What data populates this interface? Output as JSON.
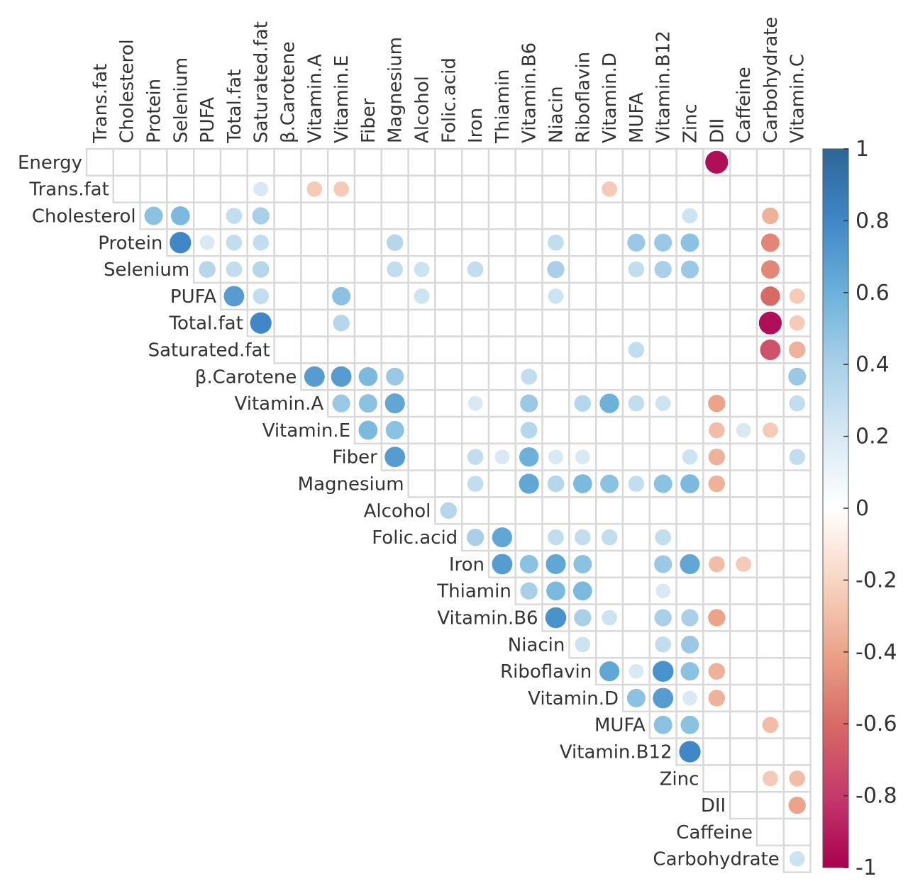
{
  "chart_data": {
    "type": "heatmap",
    "subtype": "upper-triangle correlation plot (circles)",
    "variables": [
      "Energy",
      "Trans.fat",
      "Cholesterol",
      "Protein",
      "Selenium",
      "PUFA",
      "Total.fat",
      "Saturated.fat",
      "β.Carotene",
      "Vitamin.A",
      "Vitamin.E",
      "Fiber",
      "Magnesium",
      "Alcohol",
      "Folic.acid",
      "Iron",
      "Thiamin",
      "Vitamin.B6",
      "Niacin",
      "Riboflavin",
      "Vitamin.D",
      "MUFA",
      "Vitamin.B12",
      "Zinc",
      "DII",
      "Caffeine",
      "Carbohydrate",
      "Vitamin.C"
    ],
    "row_labels": [
      "Energy",
      "Trans.fat",
      "Cholesterol",
      "Protein",
      "Selenium",
      "PUFA",
      "Total.fat",
      "Saturated.fat",
      "β.Carotene",
      "Vitamin.A",
      "Vitamin.E",
      "Fiber",
      "Magnesium",
      "Alcohol",
      "Folic.acid",
      "Iron",
      "Thiamin",
      "Vitamin.B6",
      "Niacin",
      "Riboflavin",
      "Vitamin.D",
      "MUFA",
      "Vitamin.B12",
      "Zinc",
      "DII",
      "Caffeine",
      "Carbohydrate"
    ],
    "column_labels": [
      "Trans.fat",
      "Cholesterol",
      "Protein",
      "Selenium",
      "PUFA",
      "Total.fat",
      "Saturated.fat",
      "β.Carotene",
      "Vitamin.A",
      "Vitamin.E",
      "Fiber",
      "Magnesium",
      "Alcohol",
      "Folic.acid",
      "Iron",
      "Thiamin",
      "Vitamin.B6",
      "Niacin",
      "Riboflavin",
      "Vitamin.D",
      "MUFA",
      "Vitamin.B12",
      "Zinc",
      "DII",
      "Caffeine",
      "Carbohydrate",
      "Vitamin.C"
    ],
    "value_range": [
      -1,
      1
    ],
    "colorbar": {
      "ticks": [
        "1",
        "0.8",
        "0.6",
        "0.4",
        "0.2",
        "0",
        "-0.2",
        "-0.4",
        "-0.6",
        "-0.8",
        "-1"
      ],
      "colors": {
        "-1": "#a8004f",
        "-0.8": "#c43a6b",
        "-0.6": "#d86a66",
        "-0.4": "#eba48a",
        "-0.2": "#f8d6c4",
        "0": "#ffffff",
        "0.2": "#d8e9f4",
        "0.4": "#a9d0e8",
        "0.6": "#6cb1da",
        "0.8": "#3f87c6",
        "1": "#2d6697"
      }
    },
    "correlations": [
      {
        "row": "Energy",
        "col": "DII",
        "r": -0.95
      },
      {
        "row": "Trans.fat",
        "col": "Saturated.fat",
        "r": 0.2
      },
      {
        "row": "Trans.fat",
        "col": "Vitamin.A",
        "r": -0.25
      },
      {
        "row": "Trans.fat",
        "col": "Vitamin.E",
        "r": -0.25
      },
      {
        "row": "Trans.fat",
        "col": "Vitamin.D",
        "r": -0.25
      },
      {
        "row": "Cholesterol",
        "col": "Protein",
        "r": 0.5
      },
      {
        "row": "Cholesterol",
        "col": "Selenium",
        "r": 0.55
      },
      {
        "row": "Cholesterol",
        "col": "Total.fat",
        "r": 0.3
      },
      {
        "row": "Cholesterol",
        "col": "Saturated.fat",
        "r": 0.4
      },
      {
        "row": "Cholesterol",
        "col": "Zinc",
        "r": 0.25
      },
      {
        "row": "Cholesterol",
        "col": "Carbohydrate",
        "r": -0.35
      },
      {
        "row": "Protein",
        "col": "Selenium",
        "r": 0.8
      },
      {
        "row": "Protein",
        "col": "PUFA",
        "r": 0.2
      },
      {
        "row": "Protein",
        "col": "Total.fat",
        "r": 0.3
      },
      {
        "row": "Protein",
        "col": "Saturated.fat",
        "r": 0.3
      },
      {
        "row": "Protein",
        "col": "Magnesium",
        "r": 0.35
      },
      {
        "row": "Protein",
        "col": "Niacin",
        "r": 0.3
      },
      {
        "row": "Protein",
        "col": "MUFA",
        "r": 0.45
      },
      {
        "row": "Protein",
        "col": "Vitamin.B12",
        "r": 0.45
      },
      {
        "row": "Protein",
        "col": "Zinc",
        "r": 0.5
      },
      {
        "row": "Protein",
        "col": "Carbohydrate",
        "r": -0.5
      },
      {
        "row": "Selenium",
        "col": "PUFA",
        "r": 0.35
      },
      {
        "row": "Selenium",
        "col": "Total.fat",
        "r": 0.3
      },
      {
        "row": "Selenium",
        "col": "Saturated.fat",
        "r": 0.35
      },
      {
        "row": "Selenium",
        "col": "Magnesium",
        "r": 0.3
      },
      {
        "row": "Selenium",
        "col": "Alcohol",
        "r": 0.25
      },
      {
        "row": "Selenium",
        "col": "Iron",
        "r": 0.3
      },
      {
        "row": "Selenium",
        "col": "Niacin",
        "r": 0.4
      },
      {
        "row": "Selenium",
        "col": "MUFA",
        "r": 0.3
      },
      {
        "row": "Selenium",
        "col": "Vitamin.B12",
        "r": 0.4
      },
      {
        "row": "Selenium",
        "col": "Zinc",
        "r": 0.45
      },
      {
        "row": "Selenium",
        "col": "Carbohydrate",
        "r": -0.5
      },
      {
        "row": "PUFA",
        "col": "Total.fat",
        "r": 0.7
      },
      {
        "row": "PUFA",
        "col": "Saturated.fat",
        "r": 0.3
      },
      {
        "row": "PUFA",
        "col": "Vitamin.E",
        "r": 0.5
      },
      {
        "row": "PUFA",
        "col": "Alcohol",
        "r": 0.25
      },
      {
        "row": "PUFA",
        "col": "Niacin",
        "r": 0.25
      },
      {
        "row": "PUFA",
        "col": "Carbohydrate",
        "r": -0.6
      },
      {
        "row": "PUFA",
        "col": "Vitamin.C",
        "r": -0.25
      },
      {
        "row": "Total.fat",
        "col": "Saturated.fat",
        "r": 0.8
      },
      {
        "row": "Total.fat",
        "col": "Vitamin.E",
        "r": 0.35
      },
      {
        "row": "Total.fat",
        "col": "Carbohydrate",
        "r": -0.95
      },
      {
        "row": "Total.fat",
        "col": "Vitamin.C",
        "r": -0.25
      },
      {
        "row": "Saturated.fat",
        "col": "MUFA",
        "r": 0.3
      },
      {
        "row": "Saturated.fat",
        "col": "Carbohydrate",
        "r": -0.7
      },
      {
        "row": "Saturated.fat",
        "col": "Vitamin.C",
        "r": -0.35
      },
      {
        "row": "β.Carotene",
        "col": "Vitamin.A",
        "r": 0.7
      },
      {
        "row": "β.Carotene",
        "col": "Vitamin.E",
        "r": 0.7
      },
      {
        "row": "β.Carotene",
        "col": "Fiber",
        "r": 0.55
      },
      {
        "row": "β.Carotene",
        "col": "Magnesium",
        "r": 0.45
      },
      {
        "row": "β.Carotene",
        "col": "Vitamin.B6",
        "r": 0.3
      },
      {
        "row": "β.Carotene",
        "col": "Vitamin.C",
        "r": 0.45
      },
      {
        "row": "Vitamin.A",
        "col": "Vitamin.E",
        "r": 0.45
      },
      {
        "row": "Vitamin.A",
        "col": "Fiber",
        "r": 0.5
      },
      {
        "row": "Vitamin.A",
        "col": "Magnesium",
        "r": 0.65
      },
      {
        "row": "Vitamin.A",
        "col": "Iron",
        "r": 0.2
      },
      {
        "row": "Vitamin.A",
        "col": "Vitamin.B6",
        "r": 0.45
      },
      {
        "row": "Vitamin.A",
        "col": "Riboflavin",
        "r": 0.35
      },
      {
        "row": "Vitamin.A",
        "col": "Vitamin.D",
        "r": 0.6
      },
      {
        "row": "Vitamin.A",
        "col": "MUFA",
        "r": 0.3
      },
      {
        "row": "Vitamin.A",
        "col": "Vitamin.B12",
        "r": 0.25
      },
      {
        "row": "Vitamin.A",
        "col": "DII",
        "r": -0.4
      },
      {
        "row": "Vitamin.A",
        "col": "Vitamin.C",
        "r": 0.3
      },
      {
        "row": "Vitamin.E",
        "col": "Fiber",
        "r": 0.55
      },
      {
        "row": "Vitamin.E",
        "col": "Magnesium",
        "r": 0.5
      },
      {
        "row": "Vitamin.E",
        "col": "Vitamin.B6",
        "r": 0.35
      },
      {
        "row": "Vitamin.E",
        "col": "DII",
        "r": -0.3
      },
      {
        "row": "Vitamin.E",
        "col": "Caffeine",
        "r": 0.2
      },
      {
        "row": "Vitamin.E",
        "col": "Carbohydrate",
        "r": -0.25
      },
      {
        "row": "Fiber",
        "col": "Magnesium",
        "r": 0.7
      },
      {
        "row": "Fiber",
        "col": "Iron",
        "r": 0.3
      },
      {
        "row": "Fiber",
        "col": "Thiamin",
        "r": 0.2
      },
      {
        "row": "Fiber",
        "col": "Vitamin.B6",
        "r": 0.6
      },
      {
        "row": "Fiber",
        "col": "Niacin",
        "r": 0.2
      },
      {
        "row": "Fiber",
        "col": "Riboflavin",
        "r": 0.2
      },
      {
        "row": "Fiber",
        "col": "Zinc",
        "r": 0.25
      },
      {
        "row": "Fiber",
        "col": "DII",
        "r": -0.35
      },
      {
        "row": "Fiber",
        "col": "Vitamin.C",
        "r": 0.3
      },
      {
        "row": "Magnesium",
        "col": "Iron",
        "r": 0.3
      },
      {
        "row": "Magnesium",
        "col": "Vitamin.B6",
        "r": 0.65
      },
      {
        "row": "Magnesium",
        "col": "Niacin",
        "r": 0.35
      },
      {
        "row": "Magnesium",
        "col": "Riboflavin",
        "r": 0.55
      },
      {
        "row": "Magnesium",
        "col": "Vitamin.D",
        "r": 0.5
      },
      {
        "row": "Magnesium",
        "col": "MUFA",
        "r": 0.3
      },
      {
        "row": "Magnesium",
        "col": "Vitamin.B12",
        "r": 0.5
      },
      {
        "row": "Magnesium",
        "col": "Zinc",
        "r": 0.55
      },
      {
        "row": "Magnesium",
        "col": "DII",
        "r": -0.35
      },
      {
        "row": "Alcohol",
        "col": "Folic.acid",
        "r": 0.35
      },
      {
        "row": "Folic.acid",
        "col": "Iron",
        "r": 0.4
      },
      {
        "row": "Folic.acid",
        "col": "Thiamin",
        "r": 0.65
      },
      {
        "row": "Folic.acid",
        "col": "Niacin",
        "r": 0.3
      },
      {
        "row": "Folic.acid",
        "col": "Riboflavin",
        "r": 0.3
      },
      {
        "row": "Folic.acid",
        "col": "Vitamin.D",
        "r": 0.3
      },
      {
        "row": "Folic.acid",
        "col": "Vitamin.B12",
        "r": 0.3
      },
      {
        "row": "Iron",
        "col": "Thiamin",
        "r": 0.7
      },
      {
        "row": "Iron",
        "col": "Vitamin.B6",
        "r": 0.5
      },
      {
        "row": "Iron",
        "col": "Niacin",
        "r": 0.65
      },
      {
        "row": "Iron",
        "col": "Riboflavin",
        "r": 0.5
      },
      {
        "row": "Iron",
        "col": "Vitamin.B12",
        "r": 0.45
      },
      {
        "row": "Iron",
        "col": "Zinc",
        "r": 0.65
      },
      {
        "row": "Iron",
        "col": "DII",
        "r": -0.3
      },
      {
        "row": "Iron",
        "col": "Caffeine",
        "r": -0.25
      },
      {
        "row": "Thiamin",
        "col": "Vitamin.B6",
        "r": 0.4
      },
      {
        "row": "Thiamin",
        "col": "Niacin",
        "r": 0.55
      },
      {
        "row": "Thiamin",
        "col": "Riboflavin",
        "r": 0.55
      },
      {
        "row": "Thiamin",
        "col": "Vitamin.B12",
        "r": 0.2
      },
      {
        "row": "Vitamin.B6",
        "col": "Niacin",
        "r": 0.75
      },
      {
        "row": "Vitamin.B6",
        "col": "Riboflavin",
        "r": 0.4
      },
      {
        "row": "Vitamin.B6",
        "col": "Vitamin.D",
        "r": 0.25
      },
      {
        "row": "Vitamin.B6",
        "col": "Vitamin.B12",
        "r": 0.4
      },
      {
        "row": "Vitamin.B6",
        "col": "Zinc",
        "r": 0.4
      },
      {
        "row": "Vitamin.B6",
        "col": "DII",
        "r": -0.4
      },
      {
        "row": "Niacin",
        "col": "Riboflavin",
        "r": 0.25
      },
      {
        "row": "Niacin",
        "col": "Vitamin.B12",
        "r": 0.3
      },
      {
        "row": "Niacin",
        "col": "Zinc",
        "r": 0.45
      },
      {
        "row": "Riboflavin",
        "col": "Vitamin.D",
        "r": 0.65
      },
      {
        "row": "Riboflavin",
        "col": "MUFA",
        "r": 0.2
      },
      {
        "row": "Riboflavin",
        "col": "Vitamin.B12",
        "r": 0.75
      },
      {
        "row": "Riboflavin",
        "col": "Zinc",
        "r": 0.5
      },
      {
        "row": "Riboflavin",
        "col": "DII",
        "r": -0.35
      },
      {
        "row": "Vitamin.D",
        "col": "MUFA",
        "r": 0.5
      },
      {
        "row": "Vitamin.D",
        "col": "Vitamin.B12",
        "r": 0.7
      },
      {
        "row": "Vitamin.D",
        "col": "Zinc",
        "r": 0.2
      },
      {
        "row": "Vitamin.D",
        "col": "DII",
        "r": -0.35
      },
      {
        "row": "MUFA",
        "col": "Vitamin.B12",
        "r": 0.5
      },
      {
        "row": "MUFA",
        "col": "Zinc",
        "r": 0.5
      },
      {
        "row": "MUFA",
        "col": "Carbohydrate",
        "r": -0.3
      },
      {
        "row": "Vitamin.B12",
        "col": "Zinc",
        "r": 0.8
      },
      {
        "row": "Zinc",
        "col": "Carbohydrate",
        "r": -0.25
      },
      {
        "row": "Zinc",
        "col": "Vitamin.C",
        "r": -0.3
      },
      {
        "row": "DII",
        "col": "Vitamin.C",
        "r": -0.4
      },
      {
        "row": "Carbohydrate",
        "col": "Vitamin.C",
        "r": 0.25
      }
    ]
  }
}
